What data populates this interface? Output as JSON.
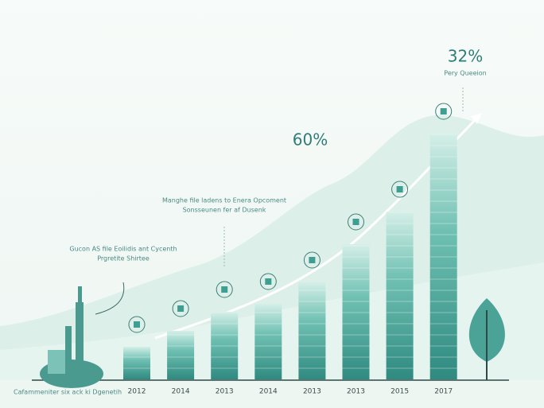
{
  "chart_data": {
    "type": "bar",
    "categories": [
      "2012",
      "2014",
      "2013",
      "2014",
      "2013",
      "2013",
      "2015",
      "2017"
    ],
    "values": [
      41,
      61,
      85,
      95,
      122,
      170,
      211,
      309
    ],
    "color": "#3e9e92",
    "annotations": [
      "32%",
      "Pery Queeion",
      "60%",
      "Manghe file ladens to Enera Opcoment",
      "Sonsseunen fer af Dusenk",
      "Gucon AS file Eoilidis ant Cycenth",
      "Prgretite Shirtee",
      "Cafammeniter six ack ki Dgenetih"
    ]
  }
}
